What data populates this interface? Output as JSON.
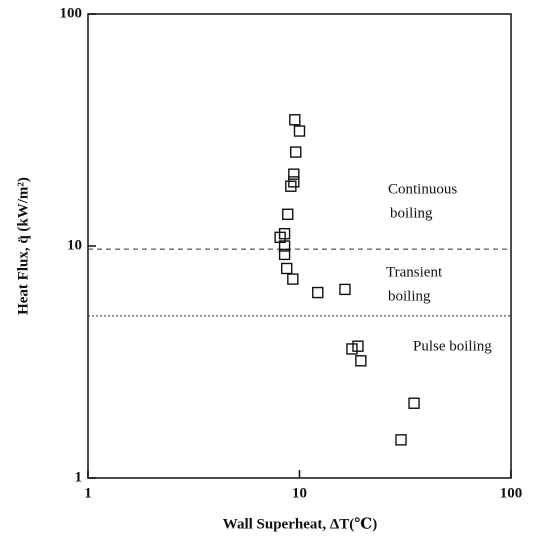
{
  "chart_data": {
    "type": "scatter",
    "xlabel": "Wall Superheat, ΔT(℃)",
    "ylabel": "Heat Flux, q̈ (kW/m²)",
    "xscale": "log",
    "yscale": "log",
    "xlim": [
      1,
      100
    ],
    "ylim": [
      1,
      100
    ],
    "xticks": [
      1,
      10,
      100
    ],
    "yticks": [
      1,
      10,
      100
    ],
    "hlines": [
      9.7,
      5.0
    ],
    "annotations": [
      [
        "Continuous",
        "boiling"
      ],
      [
        "Transient",
        "boiling"
      ],
      [
        "Pulse boiling"
      ]
    ],
    "color": "#111111",
    "x": [
      9.5,
      10.0,
      9.6,
      9.4,
      9.4,
      9.1,
      8.8,
      8.1,
      8.5,
      8.5,
      8.5,
      8.7,
      9.3,
      12.2,
      16.4,
      17.7,
      18.9,
      19.5,
      34.8,
      30.2
    ],
    "values": [
      35,
      31.3,
      25.4,
      20.4,
      18.9,
      18.1,
      13.7,
      10.9,
      11.3,
      10.0,
      9.2,
      8.0,
      7.2,
      6.3,
      6.5,
      3.6,
      3.7,
      3.2,
      2.1,
      1.46
    ]
  }
}
